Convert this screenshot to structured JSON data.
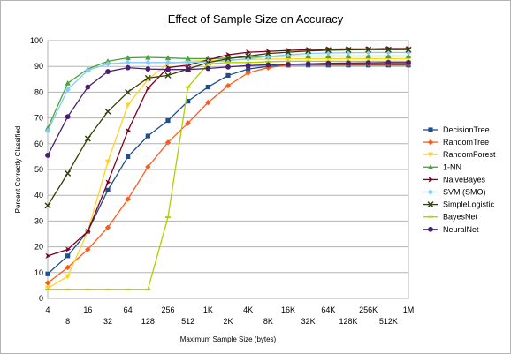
{
  "chart_data": {
    "type": "line",
    "title": "Effect of Sample Size on Accuracy",
    "xlabel": "Maximum Sample Size (bytes)",
    "ylabel": "Percent Correctly Classified",
    "ylim": [
      0,
      100
    ],
    "y_ticks": [
      "0",
      "10",
      "20",
      "30",
      "40",
      "50",
      "60",
      "70",
      "80",
      "90",
      "100"
    ],
    "categories": [
      "4",
      "8",
      "16",
      "32",
      "64",
      "128",
      "256",
      "512",
      "1K",
      "2K",
      "4K",
      "8K",
      "16K",
      "32K",
      "64K",
      "128K",
      "256K",
      "512K",
      "1M"
    ],
    "grid": true,
    "legend_position": "right",
    "series": [
      {
        "name": "DecisionTree",
        "color": "#1f4e8c",
        "marker": "square",
        "values": [
          9.5,
          16.5,
          26,
          42,
          55,
          63,
          69,
          76.5,
          82,
          86.5,
          89,
          90,
          90.5,
          90.5,
          90.5,
          90.5,
          90.5,
          90.5,
          90.5
        ]
      },
      {
        "name": "RandomTree",
        "color": "#ff5a1a",
        "marker": "diamond",
        "values": [
          6,
          12,
          19,
          27.5,
          38.5,
          51,
          60.5,
          68,
          76,
          82.5,
          87.5,
          89.5,
          90.5,
          90.8,
          91,
          91,
          91,
          91,
          91
        ]
      },
      {
        "name": "RandomForest",
        "color": "#ffd320",
        "marker": "triangle-down",
        "values": [
          4,
          8.5,
          26,
          53,
          75,
          85,
          91,
          92,
          92.3,
          92.5,
          92.7,
          92.8,
          92.9,
          93,
          93,
          93,
          93,
          93,
          93
        ]
      },
      {
        "name": "1-NN",
        "color": "#4aa33a",
        "marker": "triangle",
        "values": [
          66,
          83.5,
          89,
          92,
          93.3,
          93.5,
          93.3,
          93,
          93,
          93.2,
          93.5,
          93.8,
          94,
          94,
          94,
          94,
          94,
          94,
          94
        ]
      },
      {
        "name": "NaiveBayes",
        "color": "#7e0021",
        "marker": "arrow-right",
        "values": [
          16.5,
          19,
          26,
          45,
          65,
          81.5,
          89.5,
          90.5,
          92.5,
          94.5,
          95.5,
          95.8,
          96.2,
          96.5,
          96.7,
          96.8,
          96.8,
          96.9,
          96.9
        ]
      },
      {
        "name": "SVM (SMO)",
        "color": "#83caff",
        "marker": "diamond",
        "values": [
          65,
          81,
          88.5,
          91,
          91.5,
          91.5,
          91.5,
          91.5,
          91.8,
          92.2,
          93,
          93.8,
          94.5,
          95,
          95.2,
          95.3,
          95.4,
          95.4,
          95.4
        ]
      },
      {
        "name": "SimpleLogistic",
        "color": "#314004",
        "marker": "x",
        "values": [
          36,
          48.5,
          62,
          72.5,
          80,
          85.5,
          86.5,
          89,
          91.5,
          93,
          94,
          95,
          95.5,
          96,
          96.3,
          96.4,
          96.5,
          96.5,
          96.5
        ]
      },
      {
        "name": "BayesNet",
        "color": "#aecf00",
        "marker": "line",
        "values": [
          3.5,
          3.5,
          3.5,
          3.5,
          3.5,
          3.5,
          31.5,
          82,
          91,
          91.5,
          91.5,
          91.8,
          92,
          92,
          92,
          92,
          92,
          92,
          92
        ]
      },
      {
        "name": "NeuralNet",
        "color": "#4b1f6f",
        "marker": "circle",
        "values": [
          55.5,
          70.5,
          82,
          88,
          89.5,
          89,
          88.8,
          88.8,
          89.2,
          89.8,
          90.3,
          90.6,
          90.8,
          91,
          91.2,
          91.3,
          91.4,
          91.5,
          91.5
        ]
      }
    ]
  }
}
